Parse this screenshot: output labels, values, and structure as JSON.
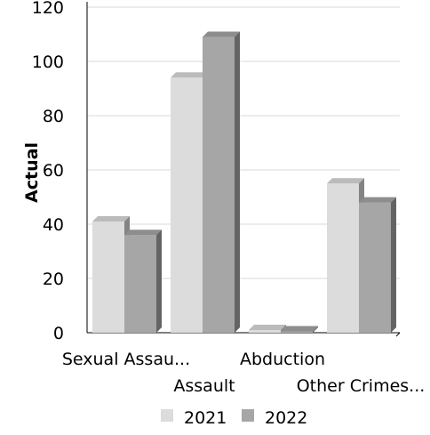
{
  "chart_data": {
    "type": "bar",
    "categories": [
      "Sexual Assau...",
      "Assault",
      "Abduction",
      "Other Crimes..."
    ],
    "series": [
      {
        "name": "2021",
        "values": [
          41,
          94,
          1,
          55
        ],
        "color": "#dcdcdc"
      },
      {
        "name": "2022",
        "values": [
          36,
          109,
          0.5,
          48
        ],
        "color": "#a6a6a6"
      }
    ],
    "ylabel": "Actual",
    "ylim": [
      0,
      120
    ],
    "yticks": [
      0,
      20,
      40,
      60,
      80,
      100,
      120
    ],
    "grid": true,
    "legend": "bottom",
    "style": "3d-bars"
  }
}
